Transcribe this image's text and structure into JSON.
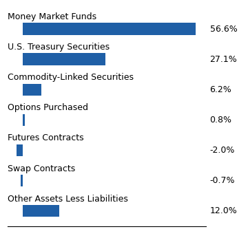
{
  "chart_data": {
    "type": "bar",
    "orientation": "horizontal",
    "categories": [
      "Money Market Funds",
      "U.S. Treasury Securities",
      "Commodity-Linked Securities",
      "Options Purchased",
      "Futures Contracts",
      "Swap Contracts",
      "Other Assets Less Liabilities"
    ],
    "values": [
      56.6,
      27.1,
      6.2,
      0.8,
      -2.0,
      -0.7,
      12.0
    ],
    "value_labels": [
      "56.6%",
      "27.1%",
      "6.2%",
      "0.8%",
      "-2.0%",
      "-0.7%",
      "12.0%"
    ],
    "data_labels": true,
    "color": "#1F5FA6",
    "xlim": [
      -5,
      60
    ],
    "tick_labels": false
  }
}
